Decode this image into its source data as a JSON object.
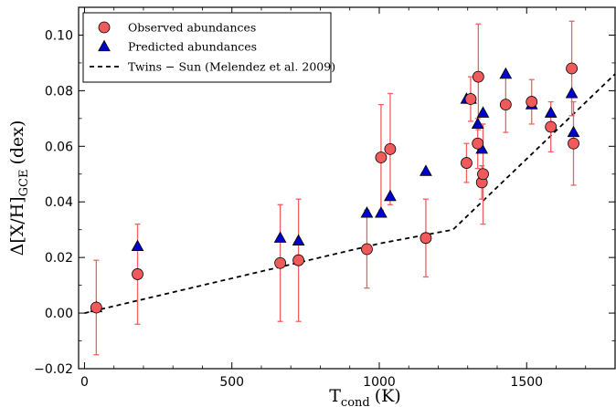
{
  "chart_data": {
    "type": "scatter",
    "xlabel_main": "T",
    "xlabel_sub": "cond",
    "xlabel_unit": "(K)",
    "ylabel_main": "Δ[X/H]",
    "ylabel_sub": "GCE",
    "ylabel_unit": "(dex)",
    "xlim": [
      -20,
      1800
    ],
    "ylim": [
      -0.02,
      0.11
    ],
    "xticks": [
      0,
      500,
      1000,
      1500
    ],
    "xtick_labels": [
      "0",
      "500",
      "1000",
      "1500"
    ],
    "yticks": [
      -0.02,
      0.0,
      0.02,
      0.04,
      0.06,
      0.08,
      0.1
    ],
    "ytick_labels": [
      "−0.02",
      "0.00",
      "0.02",
      "0.04",
      "0.06",
      "0.08",
      "0.10"
    ],
    "legend_position": "top-left",
    "colors": {
      "observed": "#f05a5a",
      "errorbar": "#f06060",
      "predicted": "#0000cc",
      "trend": "#000000"
    },
    "series": [
      {
        "name": "Observed abundances",
        "marker": "circle",
        "points": [
          {
            "x": 40,
            "y": 0.002,
            "err": 0.017
          },
          {
            "x": 180,
            "y": 0.014,
            "err": 0.018
          },
          {
            "x": 664,
            "y": 0.018,
            "err": 0.021
          },
          {
            "x": 726,
            "y": 0.019,
            "err": 0.022
          },
          {
            "x": 958,
            "y": 0.023,
            "err": 0.014
          },
          {
            "x": 1006,
            "y": 0.056,
            "err": 0.019
          },
          {
            "x": 1037,
            "y": 0.059,
            "err": 0.02
          },
          {
            "x": 1158,
            "y": 0.027,
            "err": 0.014
          },
          {
            "x": 1296,
            "y": 0.054,
            "err": 0.007
          },
          {
            "x": 1310,
            "y": 0.077,
            "err": 0.008
          },
          {
            "x": 1334,
            "y": 0.061,
            "err": 0.009
          },
          {
            "x": 1336,
            "y": 0.085,
            "err": 0.019
          },
          {
            "x": 1348,
            "y": 0.047,
            "err": 0.006
          },
          {
            "x": 1352,
            "y": 0.05,
            "err": 0.018
          },
          {
            "x": 1429,
            "y": 0.075,
            "err": 0.01
          },
          {
            "x": 1517,
            "y": 0.076,
            "err": 0.008
          },
          {
            "x": 1582,
            "y": 0.067,
            "err": 0.009
          },
          {
            "x": 1653,
            "y": 0.088,
            "err": 0.017
          },
          {
            "x": 1659,
            "y": 0.061,
            "err": 0.015
          }
        ]
      },
      {
        "name": "Predicted abundances",
        "marker": "triangle",
        "points": [
          {
            "x": 40,
            "y": 0.002
          },
          {
            "x": 180,
            "y": 0.024
          },
          {
            "x": 664,
            "y": 0.027
          },
          {
            "x": 726,
            "y": 0.026
          },
          {
            "x": 958,
            "y": 0.036
          },
          {
            "x": 1006,
            "y": 0.036
          },
          {
            "x": 1037,
            "y": 0.042
          },
          {
            "x": 1158,
            "y": 0.051
          },
          {
            "x": 1296,
            "y": 0.077
          },
          {
            "x": 1310,
            "y": 0.077
          },
          {
            "x": 1334,
            "y": 0.068
          },
          {
            "x": 1348,
            "y": 0.059
          },
          {
            "x": 1352,
            "y": 0.072
          },
          {
            "x": 1429,
            "y": 0.086
          },
          {
            "x": 1517,
            "y": 0.075
          },
          {
            "x": 1582,
            "y": 0.072
          },
          {
            "x": 1653,
            "y": 0.079
          },
          {
            "x": 1659,
            "y": 0.065
          }
        ]
      },
      {
        "name": "Twins − Sun (Melendez et al. 2009)",
        "marker": "dashed-line",
        "points": [
          {
            "x": 0,
            "y": 0.0
          },
          {
            "x": 1000,
            "y": 0.025
          },
          {
            "x": 1250,
            "y": 0.03
          },
          {
            "x": 1800,
            "y": 0.086
          }
        ]
      }
    ]
  }
}
